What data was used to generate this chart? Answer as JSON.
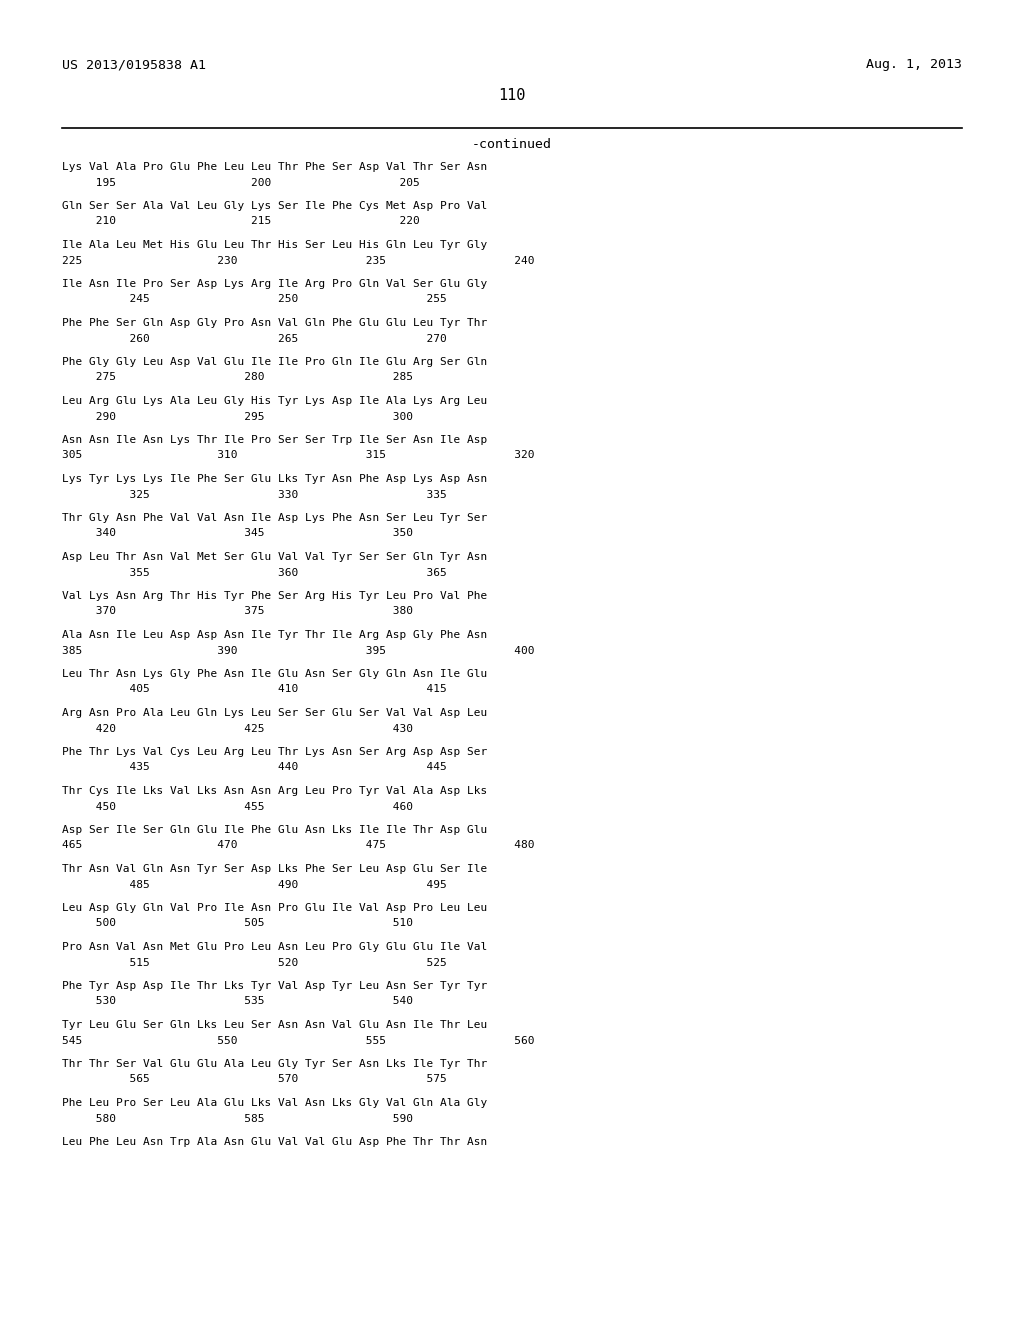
{
  "header_left": "US 2013/0195838 A1",
  "header_right": "Aug. 1, 2013",
  "page_number": "110",
  "continued_label": "-continued",
  "background_color": "#ffffff",
  "text_color": "#000000",
  "sequence_blocks": [
    [
      "Lys Val Ala Pro Glu Phe Leu Leu Thr Phe Ser Asp Val Thr Ser Asn",
      "     195                    200                   205"
    ],
    [
      "Gln Ser Ser Ala Val Leu Gly Lys Ser Ile Phe Cys Met Asp Pro Val",
      "     210                    215                   220"
    ],
    [
      "Ile Ala Leu Met His Glu Leu Thr His Ser Leu His Gln Leu Tyr Gly",
      "225                    230                   235                   240"
    ],
    [
      "Ile Asn Ile Pro Ser Asp Lys Arg Ile Arg Pro Gln Val Ser Glu Gly",
      "          245                   250                   255"
    ],
    [
      "Phe Phe Ser Gln Asp Gly Pro Asn Val Gln Phe Glu Glu Leu Tyr Thr",
      "          260                   265                   270"
    ],
    [
      "Phe Gly Gly Leu Asp Val Glu Ile Ile Pro Gln Ile Glu Arg Ser Gln",
      "     275                   280                   285"
    ],
    [
      "Leu Arg Glu Lys Ala Leu Gly His Tyr Lys Asp Ile Ala Lys Arg Leu",
      "     290                   295                   300"
    ],
    [
      "Asn Asn Ile Asn Lys Thr Ile Pro Ser Ser Trp Ile Ser Asn Ile Asp",
      "305                    310                   315                   320"
    ],
    [
      "Lys Tyr Lys Lys Ile Phe Ser Glu Lks Tyr Asn Phe Asp Lys Asp Asn",
      "          325                   330                   335"
    ],
    [
      "Thr Gly Asn Phe Val Val Asn Ile Asp Lys Phe Asn Ser Leu Tyr Ser",
      "     340                   345                   350"
    ],
    [
      "Asp Leu Thr Asn Val Met Ser Glu Val Val Tyr Ser Ser Gln Tyr Asn",
      "          355                   360                   365"
    ],
    [
      "Val Lys Asn Arg Thr His Tyr Phe Ser Arg His Tyr Leu Pro Val Phe",
      "     370                   375                   380"
    ],
    [
      "Ala Asn Ile Leu Asp Asp Asn Ile Tyr Thr Ile Arg Asp Gly Phe Asn",
      "385                    390                   395                   400"
    ],
    [
      "Leu Thr Asn Lys Gly Phe Asn Ile Glu Asn Ser Gly Gln Asn Ile Glu",
      "          405                   410                   415"
    ],
    [
      "Arg Asn Pro Ala Leu Gln Lys Leu Ser Ser Glu Ser Val Val Asp Leu",
      "     420                   425                   430"
    ],
    [
      "Phe Thr Lys Val Cys Leu Arg Leu Thr Lys Asn Ser Arg Asp Asp Ser",
      "          435                   440                   445"
    ],
    [
      "Thr Cys Ile Lks Val Lks Asn Asn Arg Leu Pro Tyr Val Ala Asp Lks",
      "     450                   455                   460"
    ],
    [
      "Asp Ser Ile Ser Gln Glu Ile Phe Glu Asn Lks Ile Ile Thr Asp Glu",
      "465                    470                   475                   480"
    ],
    [
      "Thr Asn Val Gln Asn Tyr Ser Asp Lks Phe Ser Leu Asp Glu Ser Ile",
      "          485                   490                   495"
    ],
    [
      "Leu Asp Gly Gln Val Pro Ile Asn Pro Glu Ile Val Asp Pro Leu Leu",
      "     500                   505                   510"
    ],
    [
      "Pro Asn Val Asn Met Glu Pro Leu Asn Leu Pro Gly Glu Glu Ile Val",
      "          515                   520                   525"
    ],
    [
      "Phe Tyr Asp Asp Ile Thr Lks Tyr Val Asp Tyr Leu Asn Ser Tyr Tyr",
      "     530                   535                   540"
    ],
    [
      "Tyr Leu Glu Ser Gln Lks Leu Ser Asn Asn Val Glu Asn Ile Thr Leu",
      "545                    550                   555                   560"
    ],
    [
      "Thr Thr Ser Val Glu Glu Ala Leu Gly Tyr Ser Asn Lks Ile Tyr Thr",
      "          565                   570                   575"
    ],
    [
      "Phe Leu Pro Ser Leu Ala Glu Lks Val Asn Lks Gly Val Gln Ala Gly",
      "     580                   585                   590"
    ],
    [
      "Leu Phe Leu Asn Trp Ala Asn Glu Val Val Glu Asp Phe Thr Thr Asn",
      ""
    ]
  ]
}
